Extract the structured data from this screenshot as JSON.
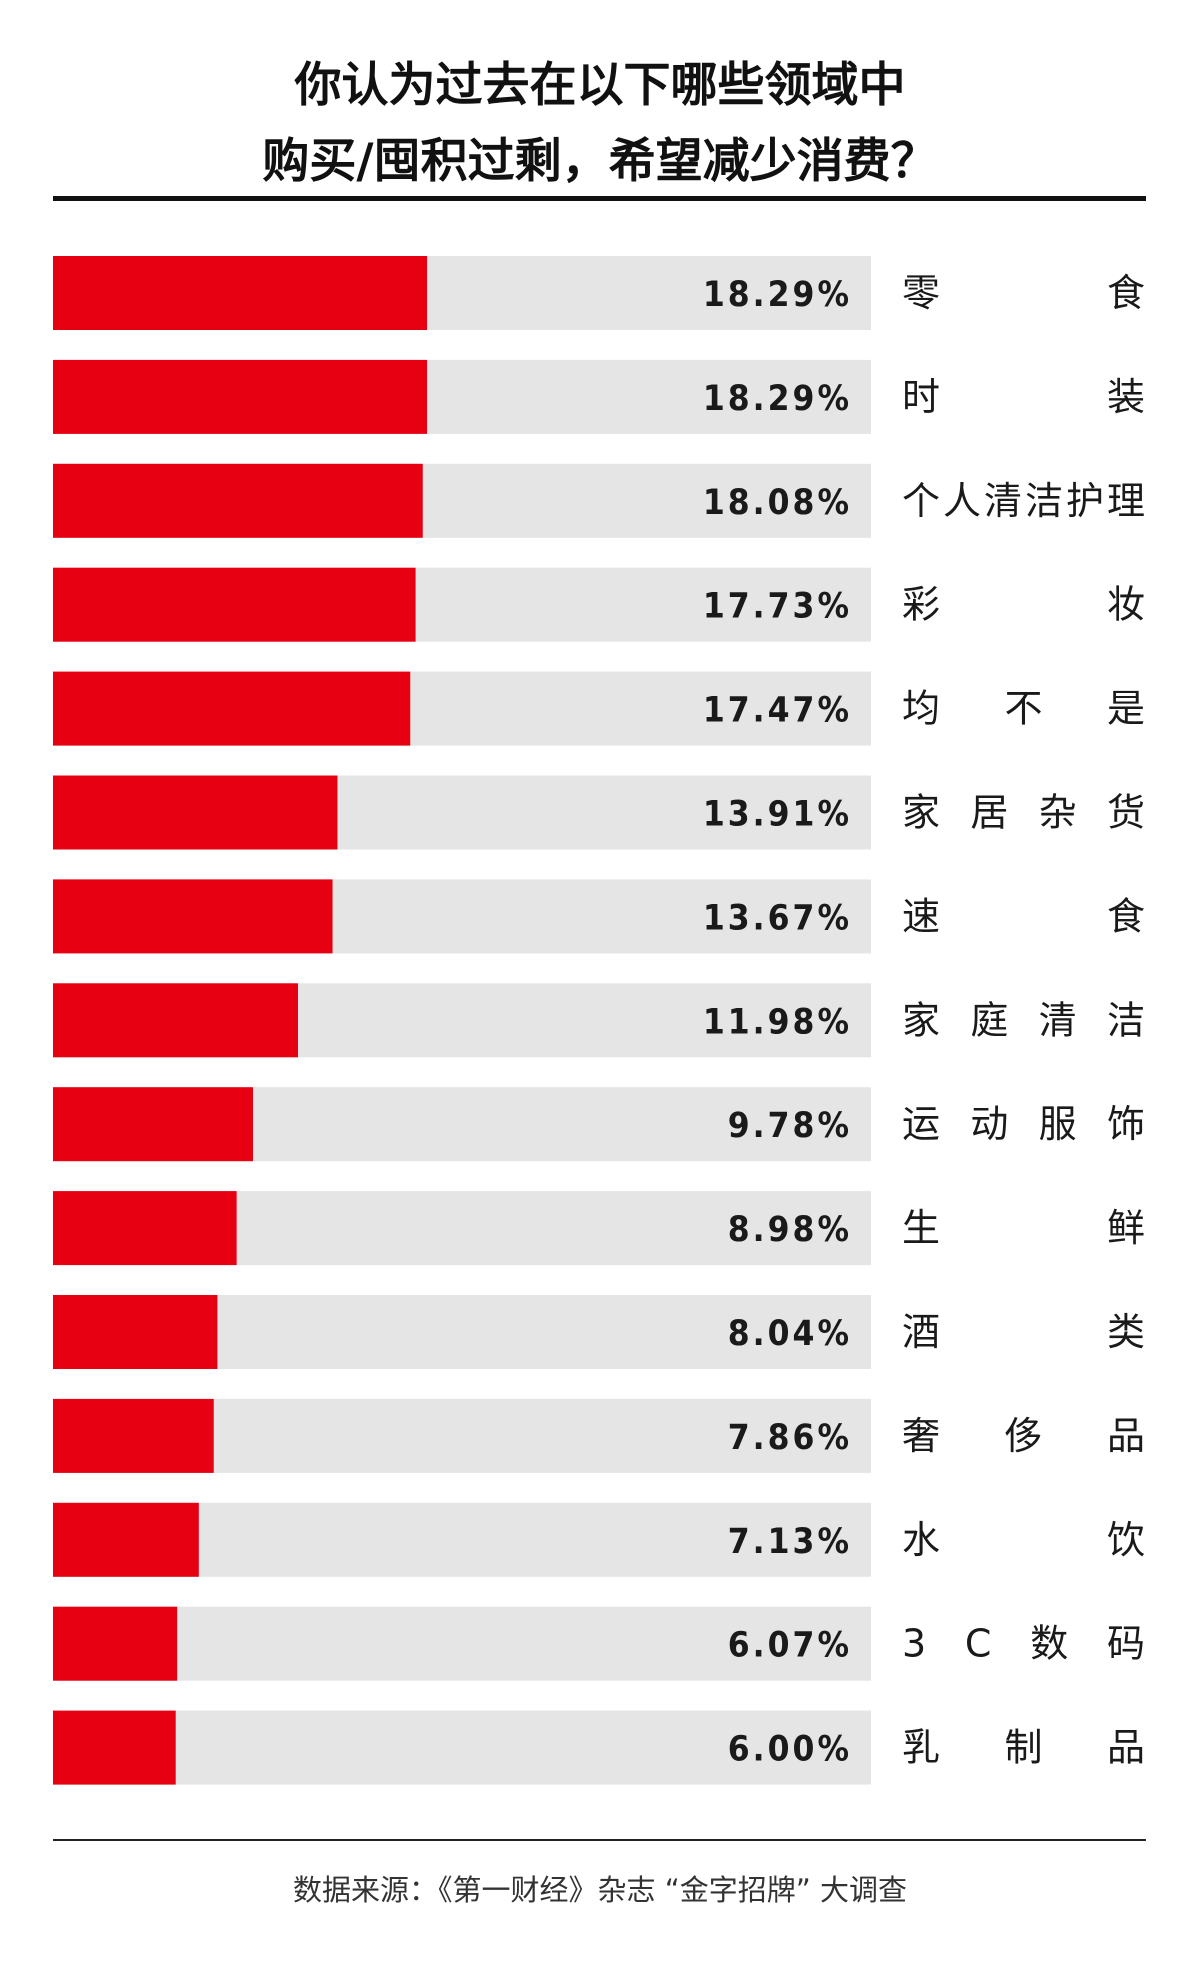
{
  "title": {
    "line1": "你认为过去在以下哪些领域中",
    "line2": "购买/囤积过剩，希望减少消费？"
  },
  "source": "数据来源：《第一财经》杂志 “金字招牌” 大调查",
  "colors": {
    "bar": "#e60012",
    "track": "#e5e5e5",
    "text": "#1a1a1a"
  },
  "chart_data": {
    "type": "bar",
    "orientation": "horizontal",
    "categories": [
      "零食",
      "时装",
      "个人清洁护理",
      "彩妆",
      "均不是",
      "家居杂货",
      "速食",
      "家庭清洁",
      "运动服饰",
      "生鲜",
      "酒类",
      "奢侈品",
      "水饮",
      "3C数码",
      "乳制品"
    ],
    "values": [
      18.29,
      18.29,
      18.08,
      17.73,
      17.47,
      13.91,
      13.67,
      11.98,
      9.78,
      8.98,
      8.04,
      7.86,
      7.13,
      6.07,
      6.0
    ],
    "value_labels": [
      "18.29%",
      "18.29%",
      "18.08%",
      "17.73%",
      "17.47%",
      "13.91%",
      "13.67%",
      "11.98%",
      "9.78%",
      "8.98%",
      "8.04%",
      "7.86%",
      "7.13%",
      "6.07%",
      "6.00%"
    ],
    "unit": "%",
    "xlim": [
      0,
      40
    ]
  }
}
